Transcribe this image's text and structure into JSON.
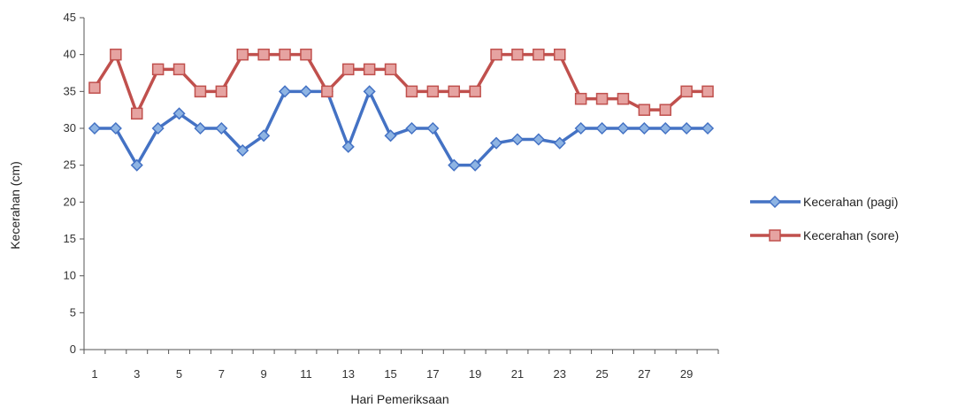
{
  "chart_data": {
    "type": "line",
    "title": "",
    "xlabel": "Hari Pemeriksaan",
    "ylabel": "Kecerahan (cm)",
    "ylim": [
      0,
      45
    ],
    "y_ticks": [
      "0",
      "5",
      "10",
      "15",
      "20",
      "25",
      "30",
      "35",
      "40",
      "45"
    ],
    "x": [
      1,
      2,
      3,
      4,
      5,
      6,
      7,
      8,
      9,
      10,
      11,
      12,
      13,
      14,
      15,
      16,
      17,
      18,
      19,
      20,
      21,
      22,
      23,
      24,
      25,
      26,
      27,
      28,
      29,
      30
    ],
    "x_tick_labels": [
      "1",
      "3",
      "5",
      "7",
      "9",
      "11",
      "13",
      "15",
      "17",
      "19",
      "21",
      "23",
      "25",
      "27",
      "29"
    ],
    "grid": false,
    "legend_position": "right",
    "series": [
      {
        "name": "Kecerahan (pagi)",
        "color": "#4472c4",
        "marker": "diamond",
        "values": [
          30,
          30,
          25,
          30,
          32,
          30,
          30,
          27,
          29,
          35,
          35,
          35,
          27.5,
          35,
          29,
          30,
          30,
          25,
          25,
          28,
          28.5,
          28.5,
          28,
          30,
          30,
          30,
          30,
          30,
          30,
          30
        ]
      },
      {
        "name": "Kecerahan (sore)",
        "color": "#c0504d",
        "marker": "square",
        "values": [
          35.5,
          40,
          32,
          38,
          38,
          35,
          35,
          40,
          40,
          40,
          40,
          35,
          38,
          38,
          38,
          35,
          35,
          35,
          35,
          40,
          40,
          40,
          40,
          34,
          34,
          34,
          32.5,
          32.5,
          35,
          35
        ]
      }
    ]
  }
}
